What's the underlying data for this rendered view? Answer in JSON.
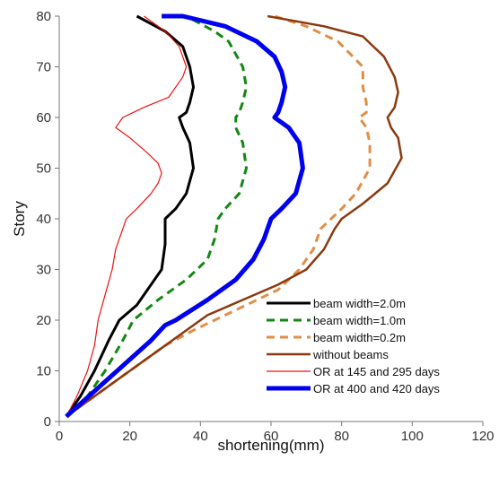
{
  "chart_data": {
    "type": "line",
    "xlabel": "shortening(mm)",
    "ylabel": "Story",
    "xlim": [
      0,
      120
    ],
    "ylim": [
      0,
      80
    ],
    "xticks": [
      0,
      20,
      40,
      60,
      80,
      100,
      120
    ],
    "yticks": [
      0,
      10,
      20,
      30,
      40,
      50,
      60,
      70,
      80
    ],
    "grid": false,
    "legend_position": "bottom-right",
    "series": [
      {
        "name": "beam width=2.0m",
        "color": "#000000",
        "style": "solid",
        "width": 3,
        "points": [
          [
            2,
            1
          ],
          [
            6,
            5
          ],
          [
            10,
            10
          ],
          [
            14,
            16
          ],
          [
            17,
            20
          ],
          [
            22,
            23
          ],
          [
            27,
            28
          ],
          [
            29,
            30
          ],
          [
            30,
            35
          ],
          [
            30,
            40
          ],
          [
            33,
            42
          ],
          [
            36,
            45
          ],
          [
            38,
            50
          ],
          [
            37,
            55
          ],
          [
            35,
            58
          ],
          [
            34,
            60
          ],
          [
            36,
            61
          ],
          [
            37,
            63
          ],
          [
            38,
            66
          ],
          [
            37,
            70
          ],
          [
            35,
            74
          ],
          [
            30,
            77
          ],
          [
            22,
            80
          ]
        ]
      },
      {
        "name": "beam width=1.0m",
        "color": "#118811",
        "style": "dashed",
        "width": 3,
        "points": [
          [
            2,
            1
          ],
          [
            8,
            5
          ],
          [
            13,
            10
          ],
          [
            18,
            16
          ],
          [
            21,
            20
          ],
          [
            28,
            24
          ],
          [
            36,
            28
          ],
          [
            42,
            32
          ],
          [
            44,
            36
          ],
          [
            45,
            40
          ],
          [
            47,
            42
          ],
          [
            51,
            45
          ],
          [
            53,
            50
          ],
          [
            52,
            55
          ],
          [
            50,
            58
          ],
          [
            50,
            60
          ],
          [
            51,
            61
          ],
          [
            52,
            63
          ],
          [
            53,
            66
          ],
          [
            52,
            70
          ],
          [
            48,
            75
          ],
          [
            44,
            77
          ],
          [
            36,
            80
          ]
        ]
      },
      {
        "name": "beam width=0.2m",
        "color": "#E08E48",
        "style": "dashed",
        "width": 3,
        "points": [
          [
            2,
            1
          ],
          [
            10,
            5
          ],
          [
            20,
            10
          ],
          [
            30,
            15
          ],
          [
            38,
            18
          ],
          [
            44,
            20
          ],
          [
            53,
            23
          ],
          [
            62,
            26
          ],
          [
            68,
            30
          ],
          [
            72,
            34
          ],
          [
            74,
            38
          ],
          [
            77,
            40
          ],
          [
            80,
            42
          ],
          [
            84,
            45
          ],
          [
            88,
            50
          ],
          [
            88,
            55
          ],
          [
            87,
            58
          ],
          [
            85,
            60
          ],
          [
            87,
            61
          ],
          [
            87,
            63
          ],
          [
            86,
            66
          ],
          [
            86,
            70
          ],
          [
            79,
            75
          ],
          [
            70,
            78
          ],
          [
            61,
            80
          ]
        ]
      },
      {
        "name": "without beams",
        "color": "#8B3A0F",
        "style": "solid",
        "width": 2.5,
        "points": [
          [
            2,
            1
          ],
          [
            10,
            5
          ],
          [
            20,
            10
          ],
          [
            30,
            15
          ],
          [
            38,
            19
          ],
          [
            42,
            21
          ],
          [
            52,
            24
          ],
          [
            62,
            27
          ],
          [
            70,
            30
          ],
          [
            75,
            34
          ],
          [
            78,
            38
          ],
          [
            80,
            40
          ],
          [
            86,
            43
          ],
          [
            93,
            47
          ],
          [
            97,
            52
          ],
          [
            96,
            56
          ],
          [
            94,
            58
          ],
          [
            93,
            60
          ],
          [
            95,
            62
          ],
          [
            96,
            65
          ],
          [
            95,
            68
          ],
          [
            92,
            72
          ],
          [
            86,
            76
          ],
          [
            75,
            78
          ],
          [
            59,
            80
          ]
        ]
      },
      {
        "name": "OR at 145 and 295 days",
        "color": "#EE1111",
        "style": "solid",
        "width": 1.2,
        "points": [
          [
            2,
            1
          ],
          [
            5,
            5
          ],
          [
            8,
            10
          ],
          [
            10,
            15
          ],
          [
            11,
            20
          ],
          [
            13,
            25
          ],
          [
            15,
            30
          ],
          [
            16,
            34
          ],
          [
            18,
            38
          ],
          [
            19,
            40
          ],
          [
            22,
            42
          ],
          [
            26,
            45
          ],
          [
            28,
            47
          ],
          [
            29,
            49
          ],
          [
            28,
            51
          ],
          [
            25,
            53
          ],
          [
            20,
            56
          ],
          [
            16,
            58
          ],
          [
            18,
            60
          ],
          [
            24,
            62
          ],
          [
            31,
            64
          ],
          [
            35,
            68
          ],
          [
            36,
            70
          ],
          [
            34,
            74
          ],
          [
            30,
            77
          ],
          [
            26,
            79
          ],
          [
            24,
            80
          ]
        ]
      },
      {
        "name": "OR at 400 and 420 days",
        "color": "#0000EE",
        "style": "solid",
        "width": 5,
        "points": [
          [
            2,
            1
          ],
          [
            10,
            6
          ],
          [
            18,
            11
          ],
          [
            26,
            16
          ],
          [
            30,
            19
          ],
          [
            33,
            20
          ],
          [
            42,
            24
          ],
          [
            50,
            28
          ],
          [
            55,
            32
          ],
          [
            58,
            36
          ],
          [
            60,
            40
          ],
          [
            63,
            42
          ],
          [
            67,
            45
          ],
          [
            69,
            50
          ],
          [
            68,
            55
          ],
          [
            65,
            58
          ],
          [
            61,
            60
          ],
          [
            62,
            61
          ],
          [
            63,
            63
          ],
          [
            64,
            66
          ],
          [
            63,
            69
          ],
          [
            61,
            72
          ],
          [
            56,
            75
          ],
          [
            47,
            78
          ],
          [
            35,
            80
          ],
          [
            29,
            80
          ]
        ]
      }
    ]
  }
}
